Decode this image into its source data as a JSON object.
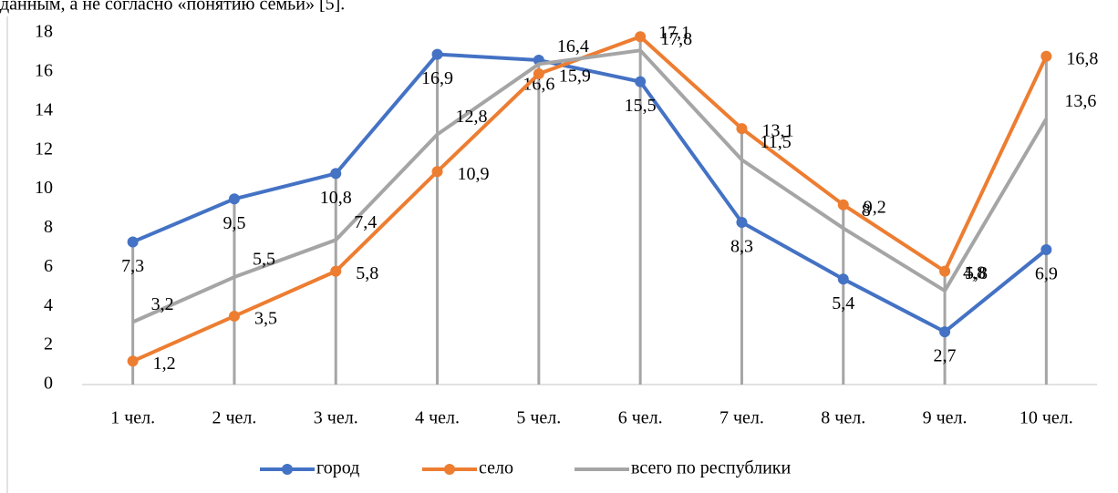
{
  "context_text": "данным, а не согласно «понятию семьи» [5].",
  "chart_data": {
    "type": "line",
    "categories": [
      "1 чел.",
      "2 чел.",
      "3 чел.",
      "4 чел.",
      "5 чел.",
      "6 чел.",
      "7 чел.",
      "8 чел.",
      "9 чел.",
      "10 чел."
    ],
    "series": [
      {
        "name": "город",
        "color": "#4472c4",
        "values": [
          7.3,
          9.5,
          10.8,
          16.9,
          16.6,
          15.5,
          8.3,
          5.4,
          2.7,
          6.9
        ],
        "value_labels": [
          "7,3",
          "9,5",
          "10,8",
          "16,9",
          "16,6",
          "15,5",
          "8,3",
          "5,4",
          "2,7",
          "6,9"
        ]
      },
      {
        "name": "село",
        "color": "#ed7d31",
        "values": [
          1.2,
          3.5,
          5.8,
          10.9,
          15.9,
          17.8,
          13.1,
          9.2,
          5.8,
          16.8
        ],
        "value_labels": [
          "1,2",
          "3,5",
          "5,8",
          "10,9",
          "15,9",
          "17,8",
          "13,1",
          "9,2",
          "5,8",
          "16,8"
        ]
      },
      {
        "name": "всего по республики",
        "color": "#a5a5a5",
        "values": [
          3.2,
          5.5,
          7.4,
          12.8,
          16.4,
          17.1,
          11.5,
          8,
          4.8,
          13.6
        ],
        "value_labels": [
          "3,2",
          "5,5",
          "7,4",
          "12,8",
          "16,4",
          "17,1",
          "11,5",
          "8",
          "4,8",
          "13,6"
        ]
      }
    ],
    "ylim": [
      0,
      18
    ],
    "yticks": [
      0,
      2,
      4,
      6,
      8,
      10,
      12,
      14,
      16,
      18
    ],
    "drop_lines": true,
    "legend": "bottom"
  }
}
